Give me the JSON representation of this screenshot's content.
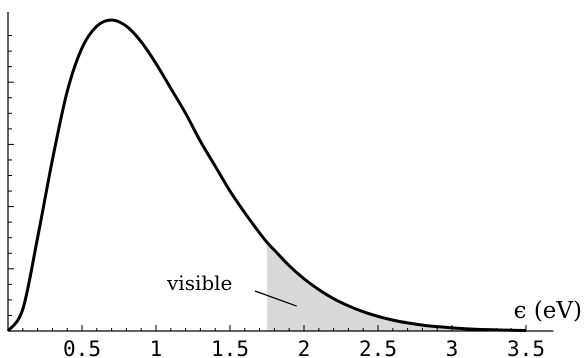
{
  "chart_data": {
    "type": "area",
    "title": "",
    "xlabel": "ϵ (eV)",
    "ylabel": "",
    "xlim": [
      0,
      3.55
    ],
    "ylim": [
      0,
      1.05
    ],
    "x_ticks": [
      "0.5",
      "1",
      "1.5",
      "2",
      "2.5",
      "3",
      "3.5"
    ],
    "y_ticks_labeled": false,
    "grid": false,
    "series": [
      {
        "x": [
          0,
          0.1,
          0.2,
          0.3,
          0.4,
          0.5,
          0.6,
          0.7,
          0.8,
          0.9,
          1.0,
          1.1,
          1.2,
          1.3,
          1.4,
          1.5,
          1.6,
          1.7,
          1.75,
          1.8,
          1.9,
          2.0,
          2.1,
          2.2,
          2.3,
          2.4,
          2.5,
          2.6,
          2.7,
          2.8,
          2.9,
          3.0,
          3.1,
          3.2,
          3.3,
          3.4,
          3.5
        ],
        "y": [
          0,
          0.07,
          0.3,
          0.55,
          0.77,
          0.91,
          0.98,
          1.0,
          0.98,
          0.93,
          0.86,
          0.78,
          0.7,
          0.61,
          0.53,
          0.45,
          0.38,
          0.315,
          0.285,
          0.26,
          0.21,
          0.168,
          0.133,
          0.104,
          0.081,
          0.062,
          0.047,
          0.035,
          0.026,
          0.019,
          0.014,
          0.01,
          0.007,
          0.005,
          0.0035,
          0.0025,
          0.0017
        ]
      }
    ],
    "shaded_region": {
      "label": "visible",
      "x_from": 1.75,
      "x_to": 3.5,
      "color": "#d9d9d9"
    },
    "annotation": {
      "text": "visible",
      "target_x": 1.95,
      "target_y": 0.08
    },
    "colors": {
      "curve": "#000000",
      "fill": "#d9d9d9"
    }
  }
}
